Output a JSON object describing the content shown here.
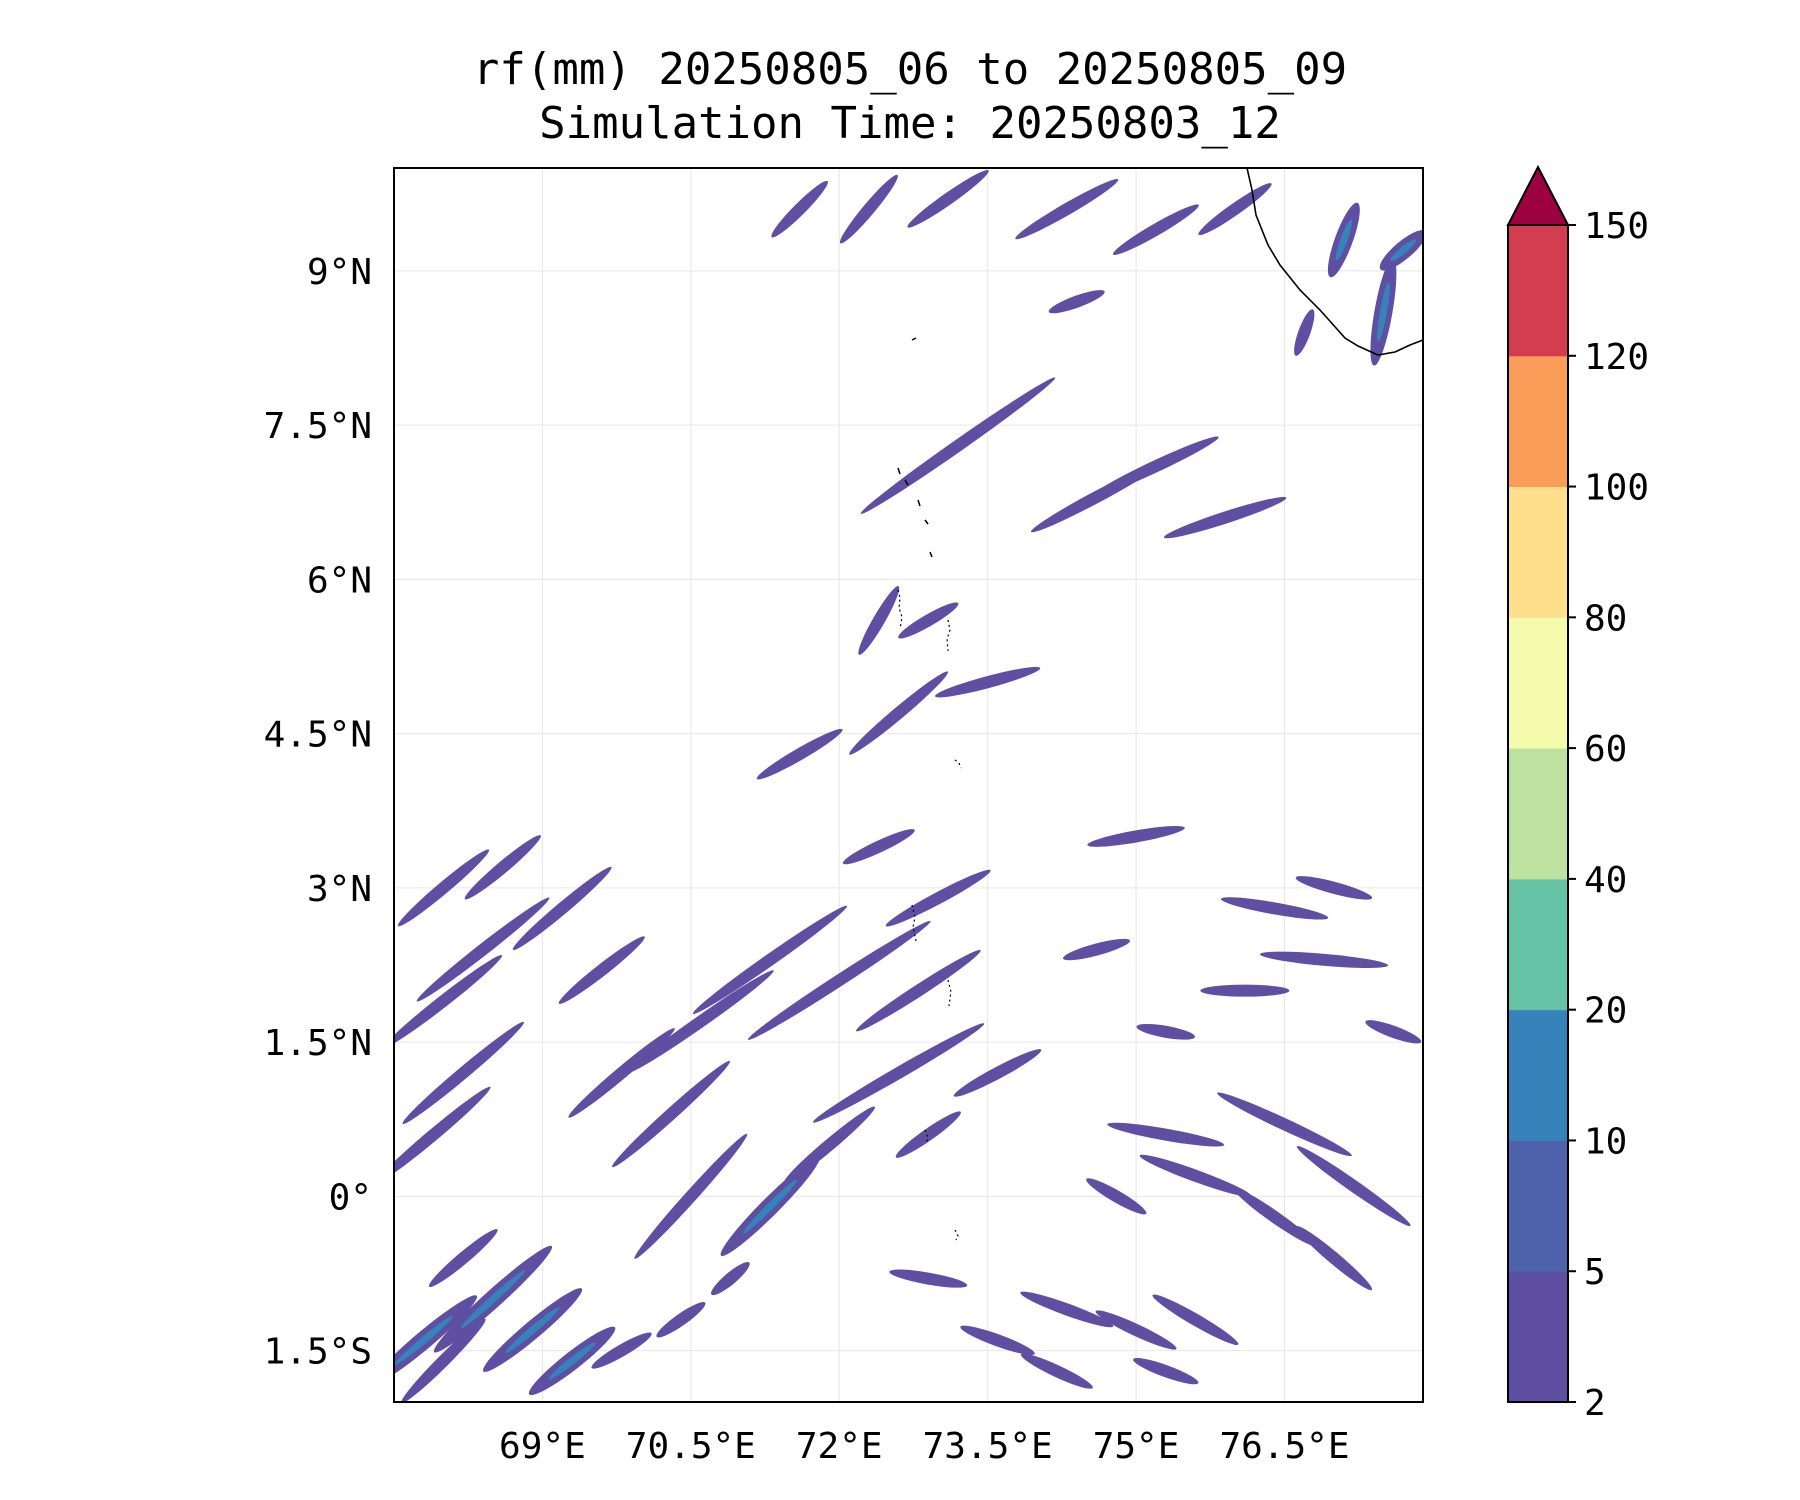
{
  "title": {
    "line1": "rf(mm) 20250805_06 to 20250805_09",
    "line2": "Simulation Time: 20250803_12"
  },
  "map": {
    "lon_range": [
      67.5,
      77.9
    ],
    "lat_range": [
      -2.0,
      10.0
    ],
    "lon_ticks": [
      {
        "value": 69.0,
        "label": "69°E"
      },
      {
        "value": 70.5,
        "label": "70.5°E"
      },
      {
        "value": 72.0,
        "label": "72°E"
      },
      {
        "value": 73.5,
        "label": "73.5°E"
      },
      {
        "value": 75.0,
        "label": "75°E"
      },
      {
        "value": 76.5,
        "label": "76.5°E"
      }
    ],
    "lat_ticks": [
      {
        "value": 9.0,
        "label": "9°N"
      },
      {
        "value": 7.5,
        "label": "7.5°N"
      },
      {
        "value": 6.0,
        "label": "6°N"
      },
      {
        "value": 4.5,
        "label": "4.5°N"
      },
      {
        "value": 3.0,
        "label": "3°N"
      },
      {
        "value": 1.5,
        "label": "1.5°N"
      },
      {
        "value": 0.0,
        "label": "0°"
      },
      {
        "value": -1.5,
        "label": "1.5°S"
      }
    ],
    "gridlines": true,
    "rain_bands": [
      {
        "lon": 67.8,
        "lat": -1.4,
        "len": 1.4,
        "ang": -40,
        "lvl": 1
      },
      {
        "lon": 68.0,
        "lat": -1.6,
        "len": 1.2,
        "ang": -45,
        "lvl": 0
      },
      {
        "lon": 68.5,
        "lat": -1.0,
        "len": 1.6,
        "ang": -42,
        "lvl": 1
      },
      {
        "lon": 68.9,
        "lat": -1.3,
        "len": 1.3,
        "ang": -40,
        "lvl": 1
      },
      {
        "lon": 69.3,
        "lat": -1.6,
        "len": 1.1,
        "ang": -38,
        "lvl": 1
      },
      {
        "lon": 68.2,
        "lat": -0.6,
        "len": 0.9,
        "ang": -40,
        "lvl": 0
      },
      {
        "lon": 67.9,
        "lat": 0.6,
        "len": 1.5,
        "ang": -40,
        "lvl": 0
      },
      {
        "lon": 68.2,
        "lat": 1.2,
        "len": 1.6,
        "ang": -40,
        "lvl": 0
      },
      {
        "lon": 68.0,
        "lat": 1.9,
        "len": 1.5,
        "ang": -38,
        "lvl": 0
      },
      {
        "lon": 68.4,
        "lat": 2.4,
        "len": 1.7,
        "ang": -38,
        "lvl": 0
      },
      {
        "lon": 68.0,
        "lat": 3.0,
        "len": 1.2,
        "ang": -40,
        "lvl": 0
      },
      {
        "lon": 68.6,
        "lat": 3.2,
        "len": 1.0,
        "ang": -40,
        "lvl": 0
      },
      {
        "lon": 69.2,
        "lat": 2.8,
        "len": 1.3,
        "ang": -40,
        "lvl": 0
      },
      {
        "lon": 69.6,
        "lat": 2.2,
        "len": 1.1,
        "ang": -38,
        "lvl": 0
      },
      {
        "lon": 69.8,
        "lat": 1.2,
        "len": 1.4,
        "ang": -40,
        "lvl": 0
      },
      {
        "lon": 70.3,
        "lat": 0.8,
        "len": 1.6,
        "ang": -42,
        "lvl": 0
      },
      {
        "lon": 70.5,
        "lat": 0.0,
        "len": 1.7,
        "ang": -48,
        "lvl": 0
      },
      {
        "lon": 71.3,
        "lat": -0.1,
        "len": 1.4,
        "ang": -45,
        "lvl": 1
      },
      {
        "lon": 70.6,
        "lat": 1.7,
        "len": 1.8,
        "ang": -35,
        "lvl": 0
      },
      {
        "lon": 71.3,
        "lat": 2.3,
        "len": 1.9,
        "ang": -35,
        "lvl": 0
      },
      {
        "lon": 72.0,
        "lat": 2.1,
        "len": 2.2,
        "ang": -33,
        "lvl": 0
      },
      {
        "lon": 72.8,
        "lat": 2.0,
        "len": 1.5,
        "ang": -33,
        "lvl": 0
      },
      {
        "lon": 72.6,
        "lat": 1.2,
        "len": 2.0,
        "ang": -30,
        "lvl": 0
      },
      {
        "lon": 73.6,
        "lat": 1.2,
        "len": 1.0,
        "ang": -28,
        "lvl": 0
      },
      {
        "lon": 71.9,
        "lat": 0.5,
        "len": 1.2,
        "ang": -40,
        "lvl": 0
      },
      {
        "lon": 72.9,
        "lat": 0.6,
        "len": 0.8,
        "ang": -35,
        "lvl": 0
      },
      {
        "lon": 73.0,
        "lat": 2.9,
        "len": 1.2,
        "ang": -28,
        "lvl": 0
      },
      {
        "lon": 72.4,
        "lat": 3.4,
        "len": 0.8,
        "ang": -25,
        "lvl": 0
      },
      {
        "lon": 71.6,
        "lat": 4.3,
        "len": 1.0,
        "ang": -30,
        "lvl": 0
      },
      {
        "lon": 72.6,
        "lat": 4.7,
        "len": 1.3,
        "ang": -40,
        "lvl": 0
      },
      {
        "lon": 73.5,
        "lat": 5.0,
        "len": 1.1,
        "ang": -15,
        "lvl": 0
      },
      {
        "lon": 72.4,
        "lat": 5.6,
        "len": 0.8,
        "ang": -60,
        "lvl": 0
      },
      {
        "lon": 72.9,
        "lat": 5.6,
        "len": 0.7,
        "ang": -30,
        "lvl": 0
      },
      {
        "lon": 73.2,
        "lat": 7.3,
        "len": 2.4,
        "ang": -35,
        "lvl": 0
      },
      {
        "lon": 74.6,
        "lat": 6.8,
        "len": 1.5,
        "ang": -28,
        "lvl": 0
      },
      {
        "lon": 75.9,
        "lat": 6.6,
        "len": 1.3,
        "ang": -18,
        "lvl": 0
      },
      {
        "lon": 75.2,
        "lat": 7.1,
        "len": 1.4,
        "ang": -25,
        "lvl": 0
      },
      {
        "lon": 71.6,
        "lat": 9.6,
        "len": 0.8,
        "ang": -45,
        "lvl": 0
      },
      {
        "lon": 72.3,
        "lat": 9.6,
        "len": 0.9,
        "ang": -50,
        "lvl": 0
      },
      {
        "lon": 73.1,
        "lat": 9.7,
        "len": 1.0,
        "ang": -35,
        "lvl": 0
      },
      {
        "lon": 74.3,
        "lat": 9.6,
        "len": 1.2,
        "ang": -30,
        "lvl": 0
      },
      {
        "lon": 75.2,
        "lat": 9.4,
        "len": 1.0,
        "ang": -30,
        "lvl": 0
      },
      {
        "lon": 76.0,
        "lat": 9.6,
        "len": 0.9,
        "ang": -35,
        "lvl": 0
      },
      {
        "lon": 74.4,
        "lat": 8.7,
        "len": 0.6,
        "ang": -20,
        "lvl": 0
      },
      {
        "lon": 75.0,
        "lat": 3.5,
        "len": 1.0,
        "ang": -10,
        "lvl": 0
      },
      {
        "lon": 76.4,
        "lat": 2.8,
        "len": 1.1,
        "ang": 10,
        "lvl": 0
      },
      {
        "lon": 76.9,
        "lat": 2.3,
        "len": 1.3,
        "ang": 5,
        "lvl": 0
      },
      {
        "lon": 76.1,
        "lat": 2.0,
        "len": 0.9,
        "ang": 0,
        "lvl": 0
      },
      {
        "lon": 77.0,
        "lat": 3.0,
        "len": 0.8,
        "ang": 15,
        "lvl": 0
      },
      {
        "lon": 74.6,
        "lat": 2.4,
        "len": 0.7,
        "ang": -15,
        "lvl": 0
      },
      {
        "lon": 75.3,
        "lat": 1.6,
        "len": 0.6,
        "ang": 10,
        "lvl": 0
      },
      {
        "lon": 76.5,
        "lat": 0.7,
        "len": 1.5,
        "ang": 25,
        "lvl": 0
      },
      {
        "lon": 75.3,
        "lat": 0.6,
        "len": 1.2,
        "ang": 10,
        "lvl": 0
      },
      {
        "lon": 75.6,
        "lat": 0.2,
        "len": 1.2,
        "ang": 20,
        "lvl": 0
      },
      {
        "lon": 76.4,
        "lat": -0.2,
        "len": 1.0,
        "ang": 35,
        "lvl": 0
      },
      {
        "lon": 77.2,
        "lat": 0.1,
        "len": 1.4,
        "ang": 35,
        "lvl": 0
      },
      {
        "lon": 77.0,
        "lat": -0.6,
        "len": 1.0,
        "ang": 40,
        "lvl": 0
      },
      {
        "lon": 77.6,
        "lat": 1.6,
        "len": 0.6,
        "ang": 20,
        "lvl": 0
      },
      {
        "lon": 74.3,
        "lat": -1.1,
        "len": 1.0,
        "ang": 20,
        "lvl": 0
      },
      {
        "lon": 75.0,
        "lat": -1.3,
        "len": 0.9,
        "ang": 25,
        "lvl": 0
      },
      {
        "lon": 75.6,
        "lat": -1.2,
        "len": 1.0,
        "ang": 30,
        "lvl": 0
      },
      {
        "lon": 73.6,
        "lat": -1.4,
        "len": 0.8,
        "ang": 20,
        "lvl": 0
      },
      {
        "lon": 72.9,
        "lat": -0.8,
        "len": 0.8,
        "ang": 10,
        "lvl": 0
      },
      {
        "lon": 74.2,
        "lat": -1.7,
        "len": 0.8,
        "ang": 25,
        "lvl": 0
      },
      {
        "lon": 75.3,
        "lat": -1.7,
        "len": 0.7,
        "ang": 20,
        "lvl": 0
      },
      {
        "lon": 74.8,
        "lat": 0.0,
        "len": 0.7,
        "ang": 30,
        "lvl": 0
      },
      {
        "lon": 69.8,
        "lat": -1.5,
        "len": 0.7,
        "ang": -30,
        "lvl": 0
      },
      {
        "lon": 70.4,
        "lat": -1.2,
        "len": 0.6,
        "ang": -35,
        "lvl": 0
      },
      {
        "lon": 70.9,
        "lat": -0.8,
        "len": 0.5,
        "ang": -40,
        "lvl": 0
      },
      {
        "lon": 77.5,
        "lat": 8.6,
        "len": 1.1,
        "ang": -80,
        "lvl": 1
      },
      {
        "lon": 77.1,
        "lat": 9.3,
        "len": 0.8,
        "ang": -70,
        "lvl": 1
      },
      {
        "lon": 77.7,
        "lat": 9.2,
        "len": 0.6,
        "ang": -40,
        "lvl": 1
      },
      {
        "lon": 76.7,
        "lat": 8.4,
        "len": 0.5,
        "ang": -70,
        "lvl": 0
      }
    ],
    "coastline_present": true
  },
  "colorbar": {
    "levels": [
      2,
      5,
      10,
      20,
      40,
      60,
      80,
      100,
      120,
      150
    ],
    "tick_labels": [
      "2",
      "5",
      "10",
      "20",
      "40",
      "60",
      "80",
      "100",
      "120",
      "150"
    ],
    "colors": [
      "#5e4fa2",
      "#4f63ad",
      "#3782bb",
      "#66c2a5",
      "#bde2a0",
      "#f4fbad",
      "#fddf8c",
      "#f99d59",
      "#d43d4f"
    ],
    "extend_color": "#9e0142"
  }
}
